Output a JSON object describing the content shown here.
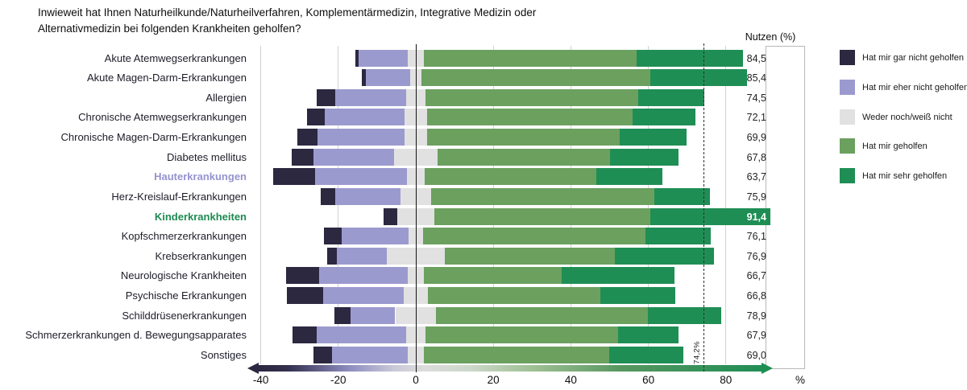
{
  "chart_data": {
    "type": "diverging-stacked-bar",
    "title": "Inwieweit hat Ihnen Naturheilkunde/Naturheilverfahren, Komplementärmedizin, Integrative Medizin oder Alternativmedizin bei folgenden Krankheiten geholfen?",
    "value_column_header": "Nutzen (%)",
    "x_axis": {
      "ticks": [
        -40,
        -20,
        0,
        20,
        40,
        60,
        80
      ],
      "unit_label": "%",
      "range": [
        -42,
        100
      ],
      "value_box_lines": [
        90,
        100
      ]
    },
    "average_line": {
      "value": 74.2,
      "label": "74,2%"
    },
    "neutral_straddles_zero": true,
    "legend_position": "right",
    "categories": [
      {
        "label": "Akute Atemwegserkrankungen",
        "color": "#1c1c28",
        "bold": false
      },
      {
        "label": "Akute Magen-Darm-Erkrankungen",
        "color": "#1c1c28",
        "bold": false
      },
      {
        "label": "Allergien",
        "color": "#1c1c28",
        "bold": false
      },
      {
        "label": "Chronische Atemwegserkrankungen",
        "color": "#1c1c28",
        "bold": false
      },
      {
        "label": "Chronische Magen-Darm-Erkrankungen",
        "color": "#1c1c28",
        "bold": false
      },
      {
        "label": "Diabetes mellitus",
        "color": "#1c1c28",
        "bold": false
      },
      {
        "label": "Hauterkrankungen",
        "color": "#9593cf",
        "bold": true
      },
      {
        "label": "Herz-Kreislauf-Erkrankungen",
        "color": "#1c1c28",
        "bold": false
      },
      {
        "label": "Kinderkrankheiten",
        "color": "#1e8a52",
        "bold": true
      },
      {
        "label": "Kopfschmerzerkrankungen",
        "color": "#1c1c28",
        "bold": false
      },
      {
        "label": "Krebserkrankungen",
        "color": "#1c1c28",
        "bold": false
      },
      {
        "label": "Neurologische Krankheiten",
        "color": "#1c1c28",
        "bold": false
      },
      {
        "label": "Psychische Erkrankungen",
        "color": "#1c1c28",
        "bold": false
      },
      {
        "label": "Schilddrüsenerkrankungen",
        "color": "#1c1c28",
        "bold": false
      },
      {
        "label": "Schmerzerkrankungen d. Bewegungsapparates",
        "color": "#1c1c28",
        "bold": false
      },
      {
        "label": "Sonstiges",
        "color": "#1c1c28",
        "bold": false
      }
    ],
    "series": [
      {
        "name": "Hat mir gar nicht geholfen",
        "color": "#2b2840",
        "values": [
          0.7,
          1.2,
          4.8,
          4.6,
          5.1,
          5.7,
          10.7,
          3.7,
          3.6,
          4.5,
          2.6,
          8.5,
          9.4,
          4.2,
          6.3,
          4.7
        ]
      },
      {
        "name": "Hat mir eher nicht geholfen",
        "color": "#9b9ace",
        "values": [
          12.7,
          11.3,
          18.3,
          20.4,
          22.4,
          20.7,
          23.8,
          16.9,
          0,
          17.4,
          12.8,
          22.8,
          20.9,
          11.6,
          23.1,
          19.5
        ]
      },
      {
        "name": "Weder noch/weiß nicht",
        "color": "#e1e1e1",
        "values": [
          4.2,
          3.0,
          5.0,
          6.0,
          6.0,
          11.2,
          4.4,
          7.9,
          9.4,
          3.6,
          15.1,
          4.3,
          6.1,
          10.6,
          4.9,
          4.2
        ]
      },
      {
        "name": "Hat mir geholfen",
        "color": "#6ba05f",
        "values": [
          54.9,
          58.9,
          54.9,
          53.0,
          49.5,
          44.6,
          44.3,
          57.5,
          55.7,
          57.4,
          43.8,
          35.5,
          44.6,
          54.6,
          49.7,
          47.8
        ]
      },
      {
        "name": "Hat mir sehr geholfen",
        "color": "#1f8e55",
        "values": [
          27.5,
          25.0,
          17.1,
          16.1,
          17.4,
          17.6,
          17.2,
          14.4,
          31.0,
          16.9,
          25.6,
          29.0,
          19.2,
          19.0,
          15.7,
          19.1
        ]
      }
    ],
    "nutzen": [
      {
        "label": "84,5",
        "value": 84.5,
        "inside": false
      },
      {
        "label": "85,4",
        "value": 85.4,
        "inside": false
      },
      {
        "label": "74,5",
        "value": 74.5,
        "inside": false
      },
      {
        "label": "72,1",
        "value": 72.1,
        "inside": false
      },
      {
        "label": "69,9",
        "value": 69.9,
        "inside": false
      },
      {
        "label": "67,8",
        "value": 67.8,
        "inside": false
      },
      {
        "label": "63,7",
        "value": 63.7,
        "inside": false
      },
      {
        "label": "75,9",
        "value": 75.9,
        "inside": false
      },
      {
        "label": "91,4",
        "value": 91.4,
        "inside": true
      },
      {
        "label": "76,1",
        "value": 76.1,
        "inside": false
      },
      {
        "label": "76,9",
        "value": 76.9,
        "inside": false
      },
      {
        "label": "66,7",
        "value": 66.7,
        "inside": false
      },
      {
        "label": "66,8",
        "value": 66.8,
        "inside": false
      },
      {
        "label": "78,9",
        "value": 78.9,
        "inside": false
      },
      {
        "label": "67,9",
        "value": 67.9,
        "inside": false
      },
      {
        "label": "69,0",
        "value": 69.0,
        "inside": false
      }
    ]
  }
}
